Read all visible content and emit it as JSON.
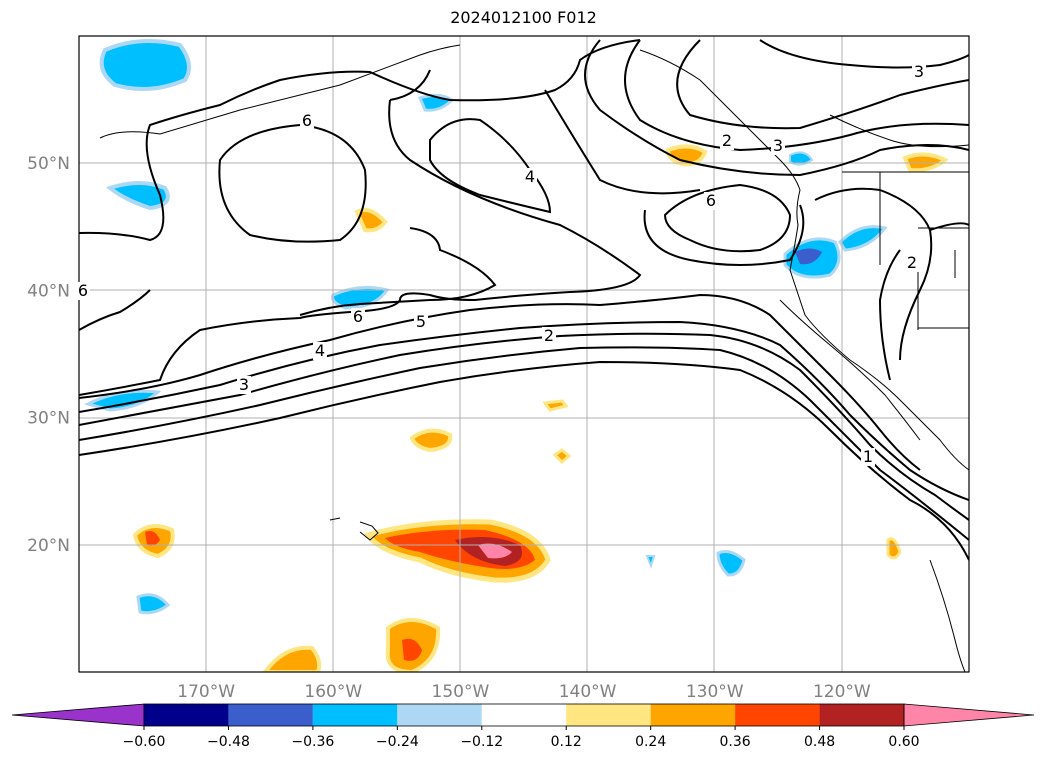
{
  "title": "2024012100 F012",
  "map": {
    "projection": "cylindrical",
    "lon_range": [
      -180,
      -110
    ],
    "lat_range": [
      10,
      60
    ],
    "grid": true,
    "lat_ticks": [
      {
        "value": 20,
        "label": "20°N"
      },
      {
        "value": 30,
        "label": "30°N"
      },
      {
        "value": 40,
        "label": "40°N"
      },
      {
        "value": 50,
        "label": "50°N"
      }
    ],
    "lon_ticks": [
      {
        "value": -170,
        "label": "170°W"
      },
      {
        "value": -160,
        "label": "160°W"
      },
      {
        "value": -150,
        "label": "150°W"
      },
      {
        "value": -140,
        "label": "140°W"
      },
      {
        "value": -130,
        "label": "130°W"
      },
      {
        "value": -120,
        "label": "120°W"
      }
    ],
    "contour_labels": [
      "6",
      "6",
      "6",
      "6",
      "5",
      "4",
      "4",
      "3",
      "3",
      "3",
      "2",
      "2",
      "2",
      "1"
    ]
  },
  "colorbar": {
    "orientation": "horizontal",
    "extend": "both",
    "ticks": [
      "−0.60",
      "−0.48",
      "−0.36",
      "−0.24",
      "−0.12",
      "0.12",
      "0.24",
      "0.36",
      "0.48",
      "0.60"
    ],
    "colors": [
      "#9933cc",
      "#00008b",
      "#3a5fcd",
      "#00bfff",
      "#add8f5",
      "#ffffff",
      "#ffe680",
      "#ffa500",
      "#ff4500",
      "#b22222",
      "#ff85a8",
      "#ff85a8"
    ]
  },
  "colors": {
    "contour": "#000000",
    "coastline": "#000000",
    "grid": "#b0b0b0",
    "tick_label": "#808080"
  }
}
